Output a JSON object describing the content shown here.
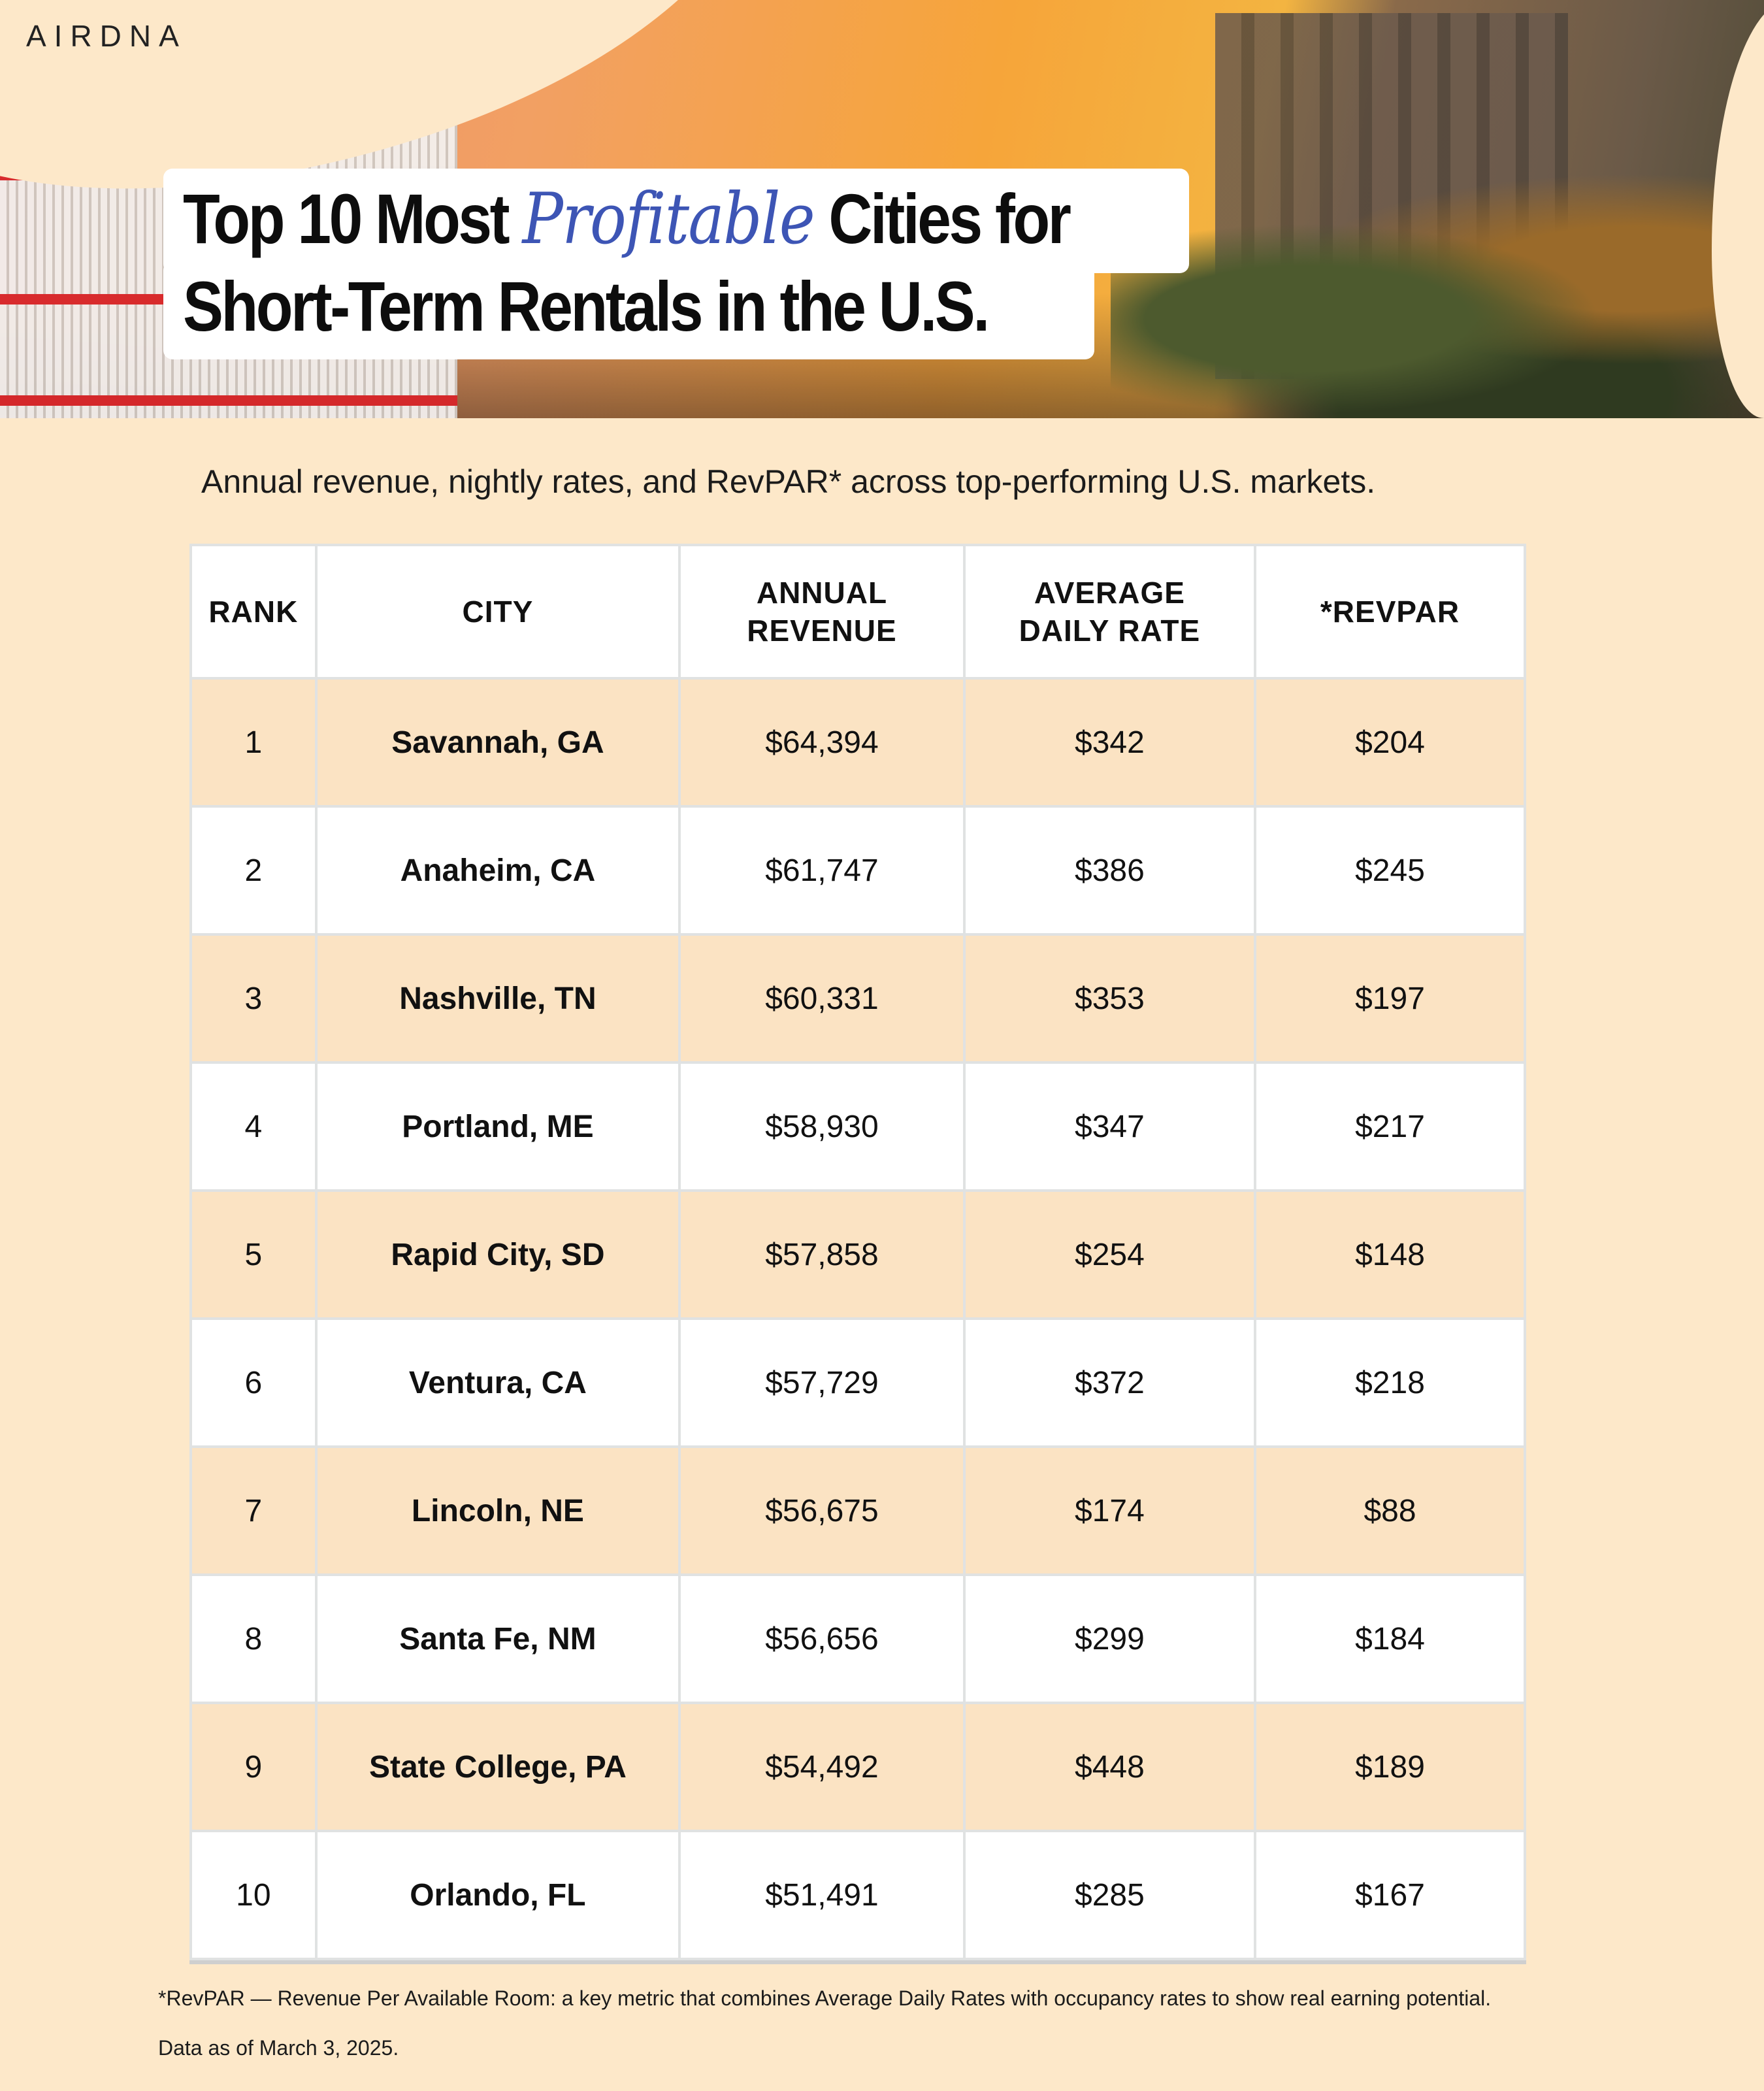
{
  "brand": {
    "logo": "AIRDNA"
  },
  "title": {
    "line1_before": "Top 10 Most",
    "line1_highlight": "Profitable",
    "line1_after": "Cities for",
    "line2": "Short-Term Rentals in the U.S.",
    "highlight_color": "#3d55b5"
  },
  "subtitle": "Annual revenue, nightly rates, and RevPAR* across top-performing U.S. markets.",
  "table": {
    "headers": [
      "RANK",
      "CITY",
      "ANNUAL REVENUE",
      "AVERAGE DAILY RATE",
      "*REVPAR"
    ],
    "rows": [
      {
        "rank": "1",
        "city": "Savannah, GA",
        "revenue": "$64,394",
        "adr": "$342",
        "revpar": "$204"
      },
      {
        "rank": "2",
        "city": "Anaheim, CA",
        "revenue": "$61,747",
        "adr": "$386",
        "revpar": "$245"
      },
      {
        "rank": "3",
        "city": "Nashville, TN",
        "revenue": "$60,331",
        "adr": "$353",
        "revpar": "$197"
      },
      {
        "rank": "4",
        "city": "Portland, ME",
        "revenue": "$58,930",
        "adr": "$347",
        "revpar": "$217"
      },
      {
        "rank": "5",
        "city": "Rapid City, SD",
        "revenue": "$57,858",
        "adr": "$254",
        "revpar": "$148"
      },
      {
        "rank": "6",
        "city": "Ventura, CA",
        "revenue": "$57,729",
        "adr": "$372",
        "revpar": "$218"
      },
      {
        "rank": "7",
        "city": "Lincoln, NE",
        "revenue": "$56,675",
        "adr": "$174",
        "revpar": "$88"
      },
      {
        "rank": "8",
        "city": "Santa Fe, NM",
        "revenue": "$56,656",
        "adr": "$299",
        "revpar": "$184"
      },
      {
        "rank": "9",
        "city": "State College, PA",
        "revenue": "$54,492",
        "adr": "$448",
        "revpar": "$189"
      },
      {
        "rank": "10",
        "city": "Orlando, FL",
        "revenue": "$51,491",
        "adr": "$285",
        "revpar": "$167"
      }
    ],
    "stripe_color": "#fbe3c3"
  },
  "footnote": "*RevPAR — Revenue Per Available Room: a key metric that combines Average Daily Rates with occupancy rates to show real earning potential.",
  "data_date": "Data as of March 3, 2025."
}
